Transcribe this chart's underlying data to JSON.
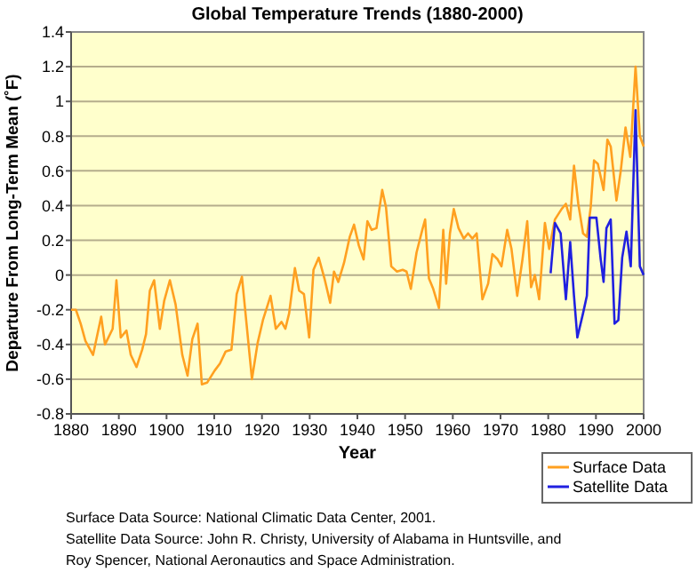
{
  "chart_data": {
    "type": "line",
    "title": "Global Temperature Trends (1880-2000)",
    "xlabel": "Year",
    "ylabel": "Departure From Long-Term Mean (˚F)",
    "xlim": [
      1880,
      2000
    ],
    "xticks": [
      1880,
      1890,
      1900,
      1910,
      1920,
      1930,
      1940,
      1950,
      1960,
      1970,
      1980,
      1990,
      2000
    ],
    "ylim": [
      -0.8,
      1.4
    ],
    "yticks": [
      -0.8,
      -0.6,
      -0.4,
      -0.2,
      0,
      0.2,
      0.4,
      0.6,
      0.8,
      1,
      1.2,
      1.4
    ],
    "grid": "y",
    "legend": "bottom right",
    "marker": "none",
    "line_style": "solid",
    "series": [
      {
        "name": "Surface Data",
        "color": "#ffa020",
        "x": [
          1880,
          1881,
          1882,
          1883,
          1884.6,
          1886.3,
          1887.1,
          1888.7,
          1889.5,
          1890.4,
          1891.6,
          1892.5,
          1893.7,
          1894.9,
          1895.7,
          1896.5,
          1897.4,
          1898.6,
          1899.5,
          1900.7,
          1901.9,
          1903.3,
          1904.4,
          1905.4,
          1906.5,
          1907.4,
          1908.5,
          1910.1,
          1911.2,
          1912.4,
          1913.6,
          1914.7,
          1915.8,
          1916.8,
          1917.9,
          1919.1,
          1920.2,
          1921.8,
          1922.9,
          1924.1,
          1924.9,
          1925.7,
          1926.9,
          1927.8,
          1928.8,
          1929.9,
          1930.8,
          1931.9,
          1933.1,
          1934.3,
          1935.1,
          1936,
          1937.2,
          1938.4,
          1939.3,
          1940.3,
          1941.3,
          1942.1,
          1943,
          1944,
          1945.2,
          1946,
          1947.1,
          1948.3,
          1949.5,
          1950.3,
          1951.2,
          1952.4,
          1953.6,
          1954.2,
          1955,
          1955.9,
          1957.1,
          1958,
          1958.6,
          1959.4,
          1960.2,
          1961.2,
          1962.3,
          1963.2,
          1964.1,
          1965,
          1966.2,
          1967.4,
          1968.3,
          1969.4,
          1970.2,
          1971.4,
          1972.3,
          1973.5,
          1974.6,
          1975.6,
          1976.4,
          1977.2,
          1978.1,
          1979.3,
          1980.2,
          1981.4,
          1982.8,
          1983.7,
          1984.6,
          1985.4,
          1986.3,
          1987.3,
          1988.1,
          1988.9,
          1989.6,
          1990.4,
          1991.6,
          1992.4,
          1993.1,
          1994.3,
          1995.2,
          1996.2,
          1997.2,
          1998.3,
          1999.2,
          2000
        ],
        "values": [
          -0.2,
          -0.2,
          -0.28,
          -0.38,
          -0.46,
          -0.24,
          -0.4,
          -0.31,
          -0.03,
          -0.36,
          -0.32,
          -0.46,
          -0.53,
          -0.43,
          -0.34,
          -0.09,
          -0.03,
          -0.31,
          -0.15,
          -0.03,
          -0.17,
          -0.46,
          -0.58,
          -0.37,
          -0.28,
          -0.63,
          -0.62,
          -0.55,
          -0.51,
          -0.44,
          -0.43,
          -0.11,
          -0.01,
          -0.29,
          -0.6,
          -0.39,
          -0.26,
          -0.12,
          -0.31,
          -0.27,
          -0.31,
          -0.22,
          0.04,
          -0.09,
          -0.11,
          -0.36,
          0.03,
          0.1,
          -0.02,
          -0.16,
          0.02,
          -0.04,
          0.07,
          0.22,
          0.29,
          0.17,
          0.09,
          0.31,
          0.26,
          0.27,
          0.49,
          0.39,
          0.05,
          0.02,
          0.03,
          0.02,
          -0.08,
          0.13,
          0.26,
          0.32,
          -0.02,
          -0.08,
          -0.19,
          0.26,
          -0.05,
          0.24,
          0.38,
          0.27,
          0.21,
          0.24,
          0.21,
          0.24,
          -0.14,
          -0.05,
          0.12,
          0.09,
          0.05,
          0.26,
          0.15,
          -0.12,
          0.09,
          0.31,
          -0.07,
          0,
          -0.14,
          0.3,
          0.15,
          0.32,
          0.38,
          0.41,
          0.32,
          0.63,
          0.41,
          0.24,
          0.22,
          0.39,
          0.66,
          0.64,
          0.49,
          0.78,
          0.74,
          0.43,
          0.6,
          0.85,
          0.68,
          1.2,
          0.8,
          0.74
        ]
      },
      {
        "name": "Satellite Data",
        "color": "#2020e0",
        "x": [
          1980.5,
          1981.4,
          1982.6,
          1983.4,
          1983.7,
          1984.6,
          1985.4,
          1986.1,
          1987.3,
          1988.1,
          1988.7,
          1990.1,
          1991,
          1991.6,
          1992.2,
          1993.1,
          1993.9,
          1994.7,
          1995.5,
          1996.4,
          1997.3,
          1998.3,
          1999.2,
          2000
        ],
        "values": [
          0.01,
          0.3,
          0.24,
          -0.04,
          -0.14,
          0.19,
          -0.12,
          -0.36,
          -0.22,
          -0.12,
          0.33,
          0.33,
          0.09,
          -0.04,
          0.27,
          0.32,
          -0.28,
          -0.26,
          0.1,
          0.25,
          0.05,
          0.95,
          0.05,
          0
        ]
      }
    ],
    "annotations": [
      "Surface Data Source: National Climatic Data Center, 2001.",
      "Satellite Data Source: John R. Christy, University of Alabama in Huntsville, and",
      "Roy Spencer, National Aeronautics and Space Administration."
    ]
  }
}
